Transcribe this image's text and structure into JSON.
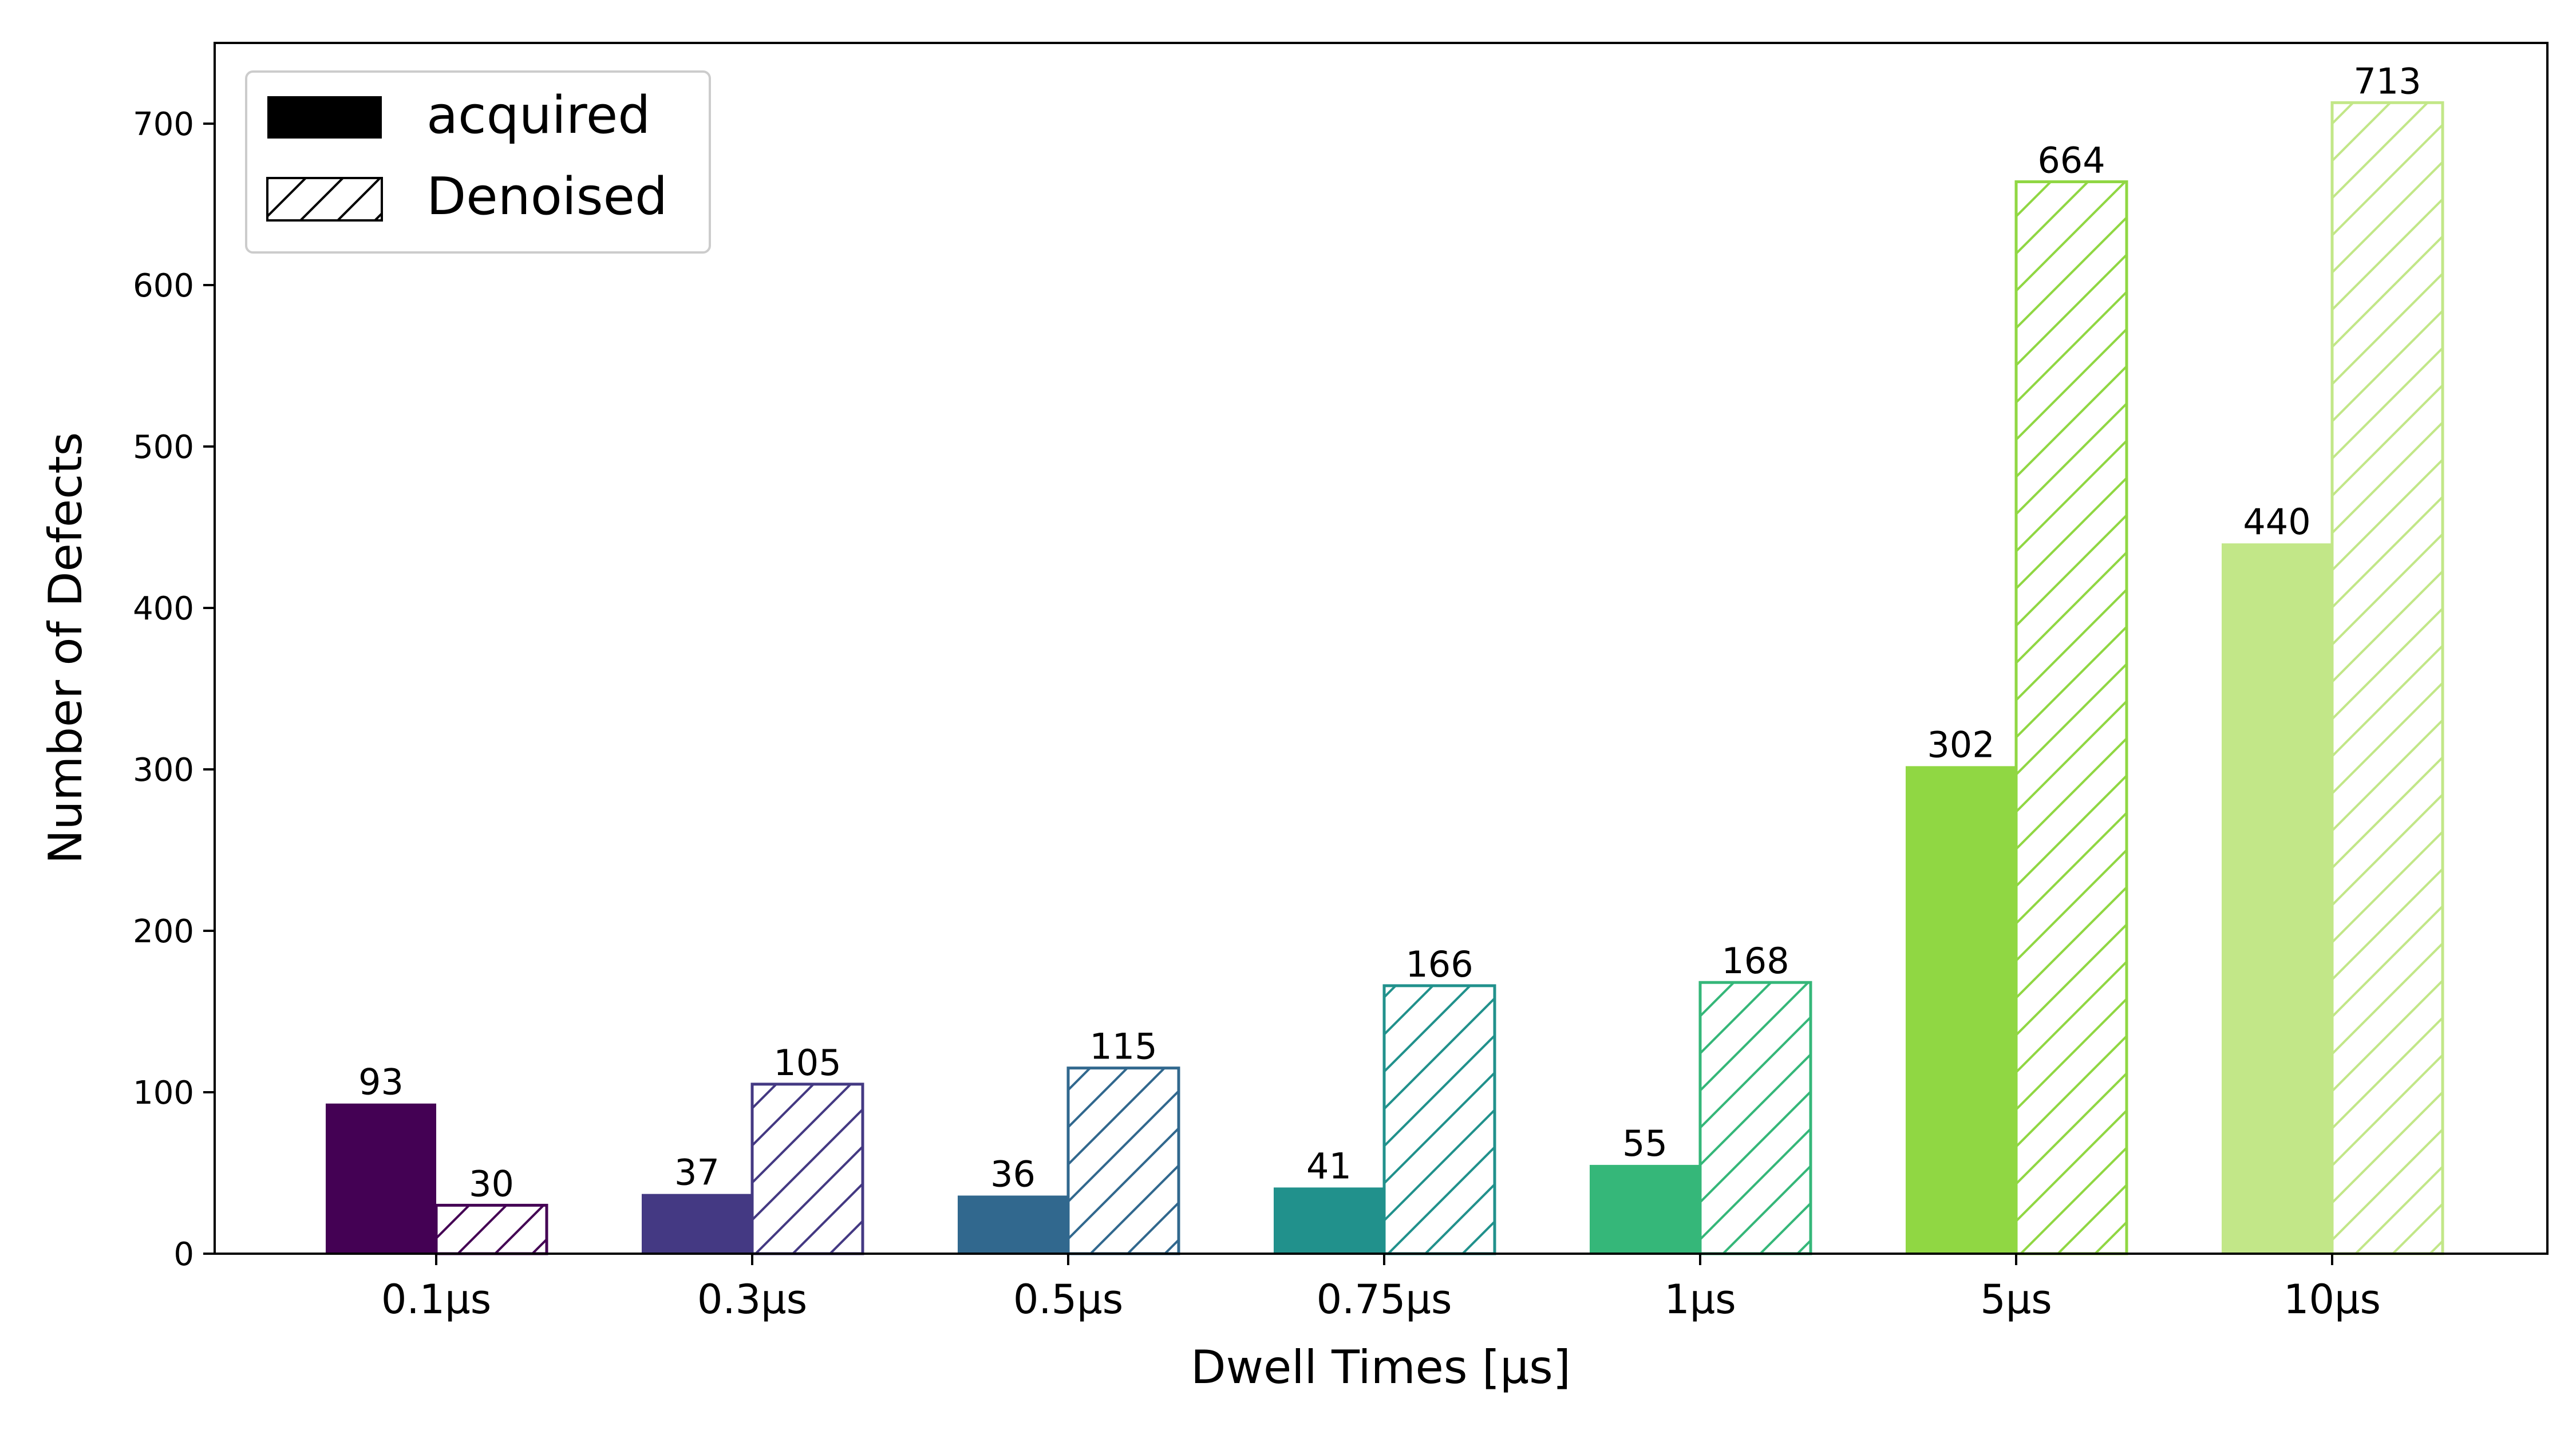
{
  "chart_data": {
    "type": "bar",
    "xlabel": "Dwell Times [µs]",
    "ylabel": "Number of Defects",
    "categories": [
      "0.1µs",
      "0.3µs",
      "0.5µs",
      "0.75µs",
      "1µs",
      "5µs",
      "10µs"
    ],
    "category_colors": [
      "#440154",
      "#443983",
      "#31688e",
      "#21918c",
      "#35b779",
      "#90d743",
      "#c2e788"
    ],
    "series": [
      {
        "name": "acquired",
        "style": "solid",
        "values": [
          93,
          37,
          36,
          41,
          55,
          302,
          440
        ]
      },
      {
        "name": "Denoised",
        "style": "hatched",
        "values": [
          30,
          105,
          115,
          166,
          168,
          664,
          713
        ]
      }
    ],
    "yticks": [
      0,
      100,
      200,
      300,
      400,
      500,
      600,
      700
    ],
    "ylim": [
      0,
      750
    ],
    "legend_position": "upper-left",
    "grid": false
  }
}
